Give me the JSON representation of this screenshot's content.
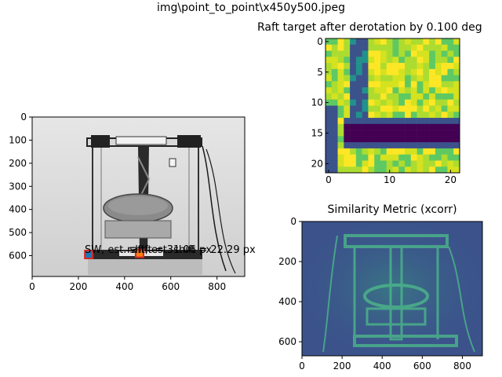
{
  "figure": {
    "suptitle": "img\\point_to_point\\x450y500.jpeg"
  },
  "chart_data": [
    {
      "type": "image",
      "name": "camera-photo",
      "title": "",
      "xlim": [
        0,
        920
      ],
      "ylim": [
        690,
        0
      ],
      "xticks": [
        0,
        200,
        400,
        600,
        800
      ],
      "yticks": [
        0,
        100,
        200,
        300,
        400,
        500,
        600
      ],
      "annotations": [
        {
          "label": "SW, est. shift = 31.06 px",
          "marker": "square",
          "x": 245,
          "y": 595,
          "color": "#d62728",
          "fill": "#1f77b4"
        },
        {
          "label": "raft, est. shift = 22.29 px",
          "marker": "square",
          "x": 465,
          "y": 590,
          "color": "#d62728",
          "fill": "#ff7f0e"
        }
      ]
    },
    {
      "type": "heatmap",
      "name": "raft-target",
      "title": "Raft target after derotation by 0.100 deg",
      "xticks": [
        0,
        10,
        20
      ],
      "yticks": [
        0,
        5,
        10,
        15,
        20
      ],
      "size": [
        22,
        22
      ]
    },
    {
      "type": "heatmap",
      "name": "similarity-metric",
      "title": "Similarity Metric (xcorr)",
      "xticks": [
        0,
        200,
        400,
        600,
        800
      ],
      "yticks": [
        0,
        200,
        400,
        600
      ],
      "xlim": [
        0,
        900
      ],
      "ylim": [
        670,
        0
      ]
    }
  ]
}
